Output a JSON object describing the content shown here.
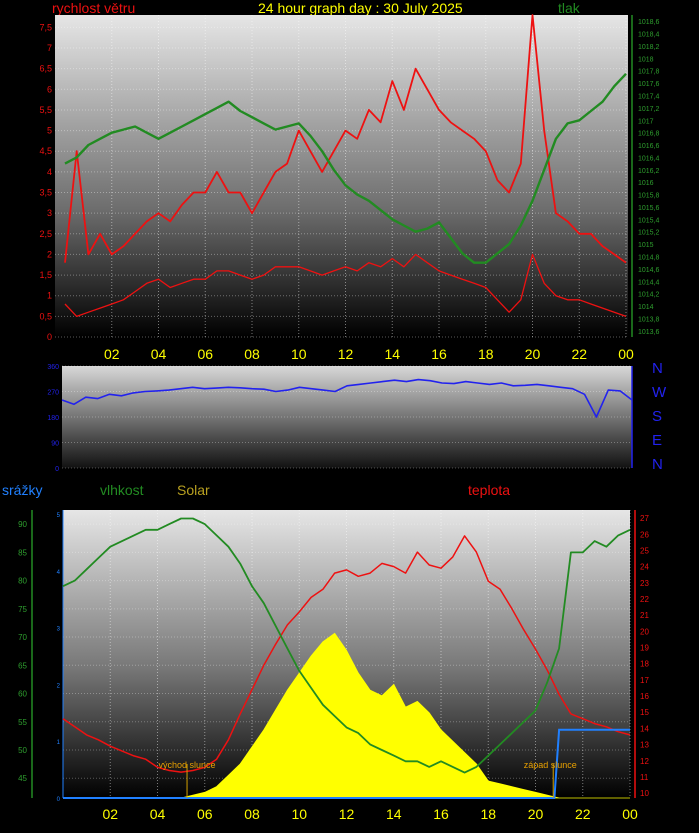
{
  "title": "24 hour graph day : 30 July 2025",
  "colors": {
    "wind": "#ee1111",
    "pressure": "#228b22",
    "direction": "#2222ee",
    "temperature": "#ee1111",
    "humidity": "#228b22",
    "solar": "#ffff00",
    "rain": "#2080ff"
  },
  "chart_data": [
    {
      "id": "wind_pressure",
      "type": "line",
      "label_left": "rychlost větru",
      "label_right": "tlak",
      "x_ticks": [
        "02",
        "04",
        "06",
        "08",
        "10",
        "12",
        "14",
        "16",
        "18",
        "20",
        "22",
        "00"
      ],
      "y_left": {
        "min": 0,
        "max": 7.8,
        "ticks": [
          "0",
          "0,5",
          "1",
          "1,5",
          "2",
          "2,5",
          "3",
          "3,5",
          "4",
          "4,5",
          "5",
          "5,5",
          "6",
          "6,5",
          "7",
          "7,5"
        ]
      },
      "y_right": {
        "min": 1013.5,
        "max": 1018.7,
        "ticks": [
          "1013,6",
          "1013,8",
          "1014",
          "1014,2",
          "1014,4",
          "1014,6",
          "1014,8",
          "1015",
          "1015,2",
          "1015,4",
          "1015,6",
          "1015,8",
          "1016",
          "1016,2",
          "1016,4",
          "1016,6",
          "1016,8",
          "1017",
          "1017,2",
          "1017,4",
          "1017,6",
          "1017,8",
          "1018",
          "1018,2",
          "1018,4",
          "1018,6"
        ]
      },
      "series": [
        {
          "key": "wind_max",
          "x": [
            0,
            0.5,
            1,
            1.5,
            2,
            2.5,
            3,
            3.5,
            4,
            4.5,
            5,
            5.5,
            6,
            6.5,
            7,
            7.5,
            8,
            8.5,
            9,
            9.5,
            10,
            10.5,
            11,
            11.5,
            12,
            12.5,
            13,
            13.5,
            14,
            14.5,
            15,
            15.5,
            16,
            16.5,
            17,
            17.5,
            18,
            18.5,
            19,
            19.5,
            20,
            20.5,
            21,
            21.5,
            22,
            22.5,
            23,
            23.5,
            24
          ],
          "y": [
            1.8,
            4.5,
            2,
            2.5,
            2,
            2.2,
            2.5,
            2.8,
            3,
            2.8,
            3.2,
            3.5,
            3.5,
            4,
            3.5,
            3.5,
            3,
            3.5,
            4,
            4.2,
            5,
            4.5,
            4,
            4.5,
            5,
            4.8,
            5.5,
            5.2,
            6.2,
            5.5,
            6.5,
            6,
            5.5,
            5.2,
            5,
            4.8,
            4.5,
            3.8,
            3.5,
            4.2,
            7.8,
            5,
            3,
            2.8,
            2.5,
            2.5,
            2.2,
            2,
            1.8
          ]
        },
        {
          "key": "wind_avg",
          "x": [
            0,
            0.5,
            1,
            1.5,
            2,
            2.5,
            3,
            3.5,
            4,
            4.5,
            5,
            5.5,
            6,
            6.5,
            7,
            7.5,
            8,
            8.5,
            9,
            9.5,
            10,
            10.5,
            11,
            11.5,
            12,
            12.5,
            13,
            13.5,
            14,
            14.5,
            15,
            15.5,
            16,
            16.5,
            17,
            17.5,
            18,
            18.5,
            19,
            19.5,
            20,
            20.5,
            21,
            21.5,
            22,
            22.5,
            23,
            23.5,
            24
          ],
          "y": [
            0.8,
            0.5,
            0.6,
            0.7,
            0.8,
            0.9,
            1.1,
            1.3,
            1.4,
            1.2,
            1.3,
            1.4,
            1.4,
            1.6,
            1.6,
            1.5,
            1.4,
            1.5,
            1.7,
            1.7,
            1.7,
            1.6,
            1.5,
            1.6,
            1.7,
            1.6,
            1.8,
            1.7,
            1.9,
            1.7,
            2,
            1.8,
            1.6,
            1.5,
            1.4,
            1.3,
            1.2,
            0.9,
            0.6,
            0.9,
            2,
            1.3,
            1,
            0.9,
            0.9,
            0.8,
            0.7,
            0.6,
            0.5
          ]
        },
        {
          "key": "pressure",
          "x": [
            0,
            0.5,
            1,
            1.5,
            2,
            2.5,
            3,
            3.5,
            4,
            4.5,
            5,
            5.5,
            6,
            6.5,
            7,
            7.5,
            8,
            8.5,
            9,
            9.5,
            10,
            10.5,
            11,
            11.5,
            12,
            12.5,
            13,
            13.5,
            14,
            14.5,
            15,
            15.5,
            16,
            16.5,
            17,
            17.5,
            18,
            18.5,
            19,
            19.5,
            20,
            20.5,
            21,
            21.5,
            22,
            22.5,
            23,
            23.5,
            24
          ],
          "y": [
            1016.3,
            1016.4,
            1016.6,
            1016.7,
            1016.8,
            1016.85,
            1016.9,
            1016.8,
            1016.7,
            1016.8,
            1016.9,
            1017.0,
            1017.1,
            1017.2,
            1017.3,
            1017.15,
            1017.05,
            1016.95,
            1016.85,
            1016.9,
            1016.95,
            1016.75,
            1016.5,
            1016.2,
            1015.95,
            1015.8,
            1015.7,
            1015.55,
            1015.4,
            1015.3,
            1015.2,
            1015.25,
            1015.35,
            1015.1,
            1014.85,
            1014.7,
            1014.7,
            1014.85,
            1015.0,
            1015.3,
            1015.7,
            1016.2,
            1016.7,
            1016.95,
            1017.0,
            1017.15,
            1017.3,
            1017.55,
            1017.75
          ]
        }
      ]
    },
    {
      "id": "direction",
      "type": "line",
      "compass": [
        "N",
        "W",
        "S",
        "E",
        "N"
      ],
      "y": {
        "min": 0,
        "max": 360,
        "ticks": [
          "0",
          "90",
          "180",
          "270",
          "360"
        ]
      },
      "series": [
        {
          "key": "direction",
          "x": [
            0,
            0.5,
            1,
            1.5,
            2,
            2.5,
            3,
            3.5,
            4,
            4.5,
            5,
            5.5,
            6,
            6.5,
            7,
            7.5,
            8,
            8.5,
            9,
            9.5,
            10,
            10.5,
            11,
            11.5,
            12,
            12.5,
            13,
            13.5,
            14,
            14.5,
            15,
            15.5,
            16,
            16.5,
            17,
            17.5,
            18,
            18.5,
            19,
            19.5,
            20,
            20.5,
            21,
            21.5,
            22,
            22.5,
            23,
            23.5,
            24
          ],
          "y": [
            240,
            225,
            250,
            245,
            260,
            255,
            265,
            270,
            272,
            275,
            280,
            285,
            280,
            282,
            285,
            283,
            280,
            278,
            270,
            275,
            285,
            280,
            275,
            270,
            290,
            295,
            300,
            305,
            310,
            305,
            312,
            308,
            300,
            298,
            305,
            300,
            295,
            300,
            290,
            292,
            295,
            290,
            285,
            280,
            260,
            180,
            275,
            272,
            240
          ]
        }
      ]
    },
    {
      "id": "temp_hum_solar",
      "type": "line",
      "label_rain": "srážky",
      "label_humidity": "vlhkost",
      "label_solar": "Solar",
      "label_temperature": "teplota",
      "sunrise_label": "východ slunce",
      "sunset_label": "západ slunce",
      "sunrise_time": 5.25,
      "sunset_time": 20.75,
      "x_ticks": [
        "02",
        "04",
        "06",
        "08",
        "10",
        "12",
        "14",
        "16",
        "18",
        "20",
        "22",
        "00"
      ],
      "y_humidity": {
        "min": 41.5,
        "max": 92.5,
        "ticks": [
          "45",
          "50",
          "55",
          "60",
          "65",
          "70",
          "75",
          "80",
          "85",
          "90"
        ]
      },
      "y_temperature": {
        "min": 9.7,
        "max": 27.5,
        "ticks": [
          "10",
          "11",
          "12",
          "13",
          "14",
          "15",
          "16",
          "17",
          "18",
          "19",
          "20",
          "21",
          "22",
          "23",
          "24",
          "25",
          "26",
          "27"
        ]
      },
      "y_rain": {
        "min": 0,
        "max": 5,
        "ticks": [
          "0",
          "1",
          "2",
          "3",
          "4",
          "5"
        ]
      },
      "series": [
        {
          "key": "temperature",
          "x": [
            0,
            0.5,
            1,
            1.5,
            2,
            2.5,
            3,
            3.5,
            4,
            4.5,
            5,
            5.5,
            6,
            6.5,
            7,
            7.5,
            8,
            8.5,
            9,
            9.5,
            10,
            10.5,
            11,
            11.5,
            12,
            12.5,
            13,
            13.5,
            14,
            14.5,
            15,
            15.5,
            16,
            16.5,
            17,
            17.5,
            18,
            18.5,
            19,
            19.5,
            20,
            20.5,
            21,
            21.5,
            22,
            22.5,
            23,
            23.5,
            24
          ],
          "y": [
            14.6,
            14.1,
            13.6,
            13.3,
            12.9,
            12.6,
            12.3,
            12.1,
            11.6,
            11.4,
            11.3,
            11.4,
            11.6,
            12.1,
            13.3,
            14.9,
            16.4,
            17.9,
            19.2,
            20.4,
            21.2,
            22.1,
            22.6,
            23.6,
            23.8,
            23.4,
            23.6,
            24.2,
            24.0,
            23.6,
            24.9,
            24.1,
            23.9,
            24.6,
            25.9,
            24.9,
            23.1,
            22.6,
            21.4,
            20.1,
            18.9,
            17.6,
            16.1,
            14.9,
            14.6,
            14.3,
            14.1,
            13.8,
            13.6
          ]
        },
        {
          "key": "humidity",
          "x": [
            0,
            0.5,
            1,
            1.5,
            2,
            2.5,
            3,
            3.5,
            4,
            4.5,
            5,
            5.5,
            6,
            6.5,
            7,
            7.5,
            8,
            8.5,
            9,
            9.5,
            10,
            10.5,
            11,
            11.5,
            12,
            12.5,
            13,
            13.5,
            14,
            14.5,
            15,
            15.5,
            16,
            16.5,
            17,
            17.5,
            18,
            18.5,
            19,
            19.5,
            20,
            20.5,
            21,
            21.5,
            22,
            22.5,
            23,
            23.5,
            24
          ],
          "y": [
            79,
            80,
            82,
            84,
            86,
            87,
            88,
            89,
            89,
            90,
            91,
            91,
            90,
            88,
            86,
            83,
            79,
            76,
            72,
            68,
            64,
            61,
            58,
            56,
            54,
            53,
            51,
            50,
            49,
            48,
            48,
            47,
            48,
            47,
            46,
            47,
            49,
            51,
            53,
            55,
            57,
            62,
            68,
            85,
            85,
            87,
            86,
            88,
            89
          ]
        },
        {
          "key": "solar",
          "x": [
            0,
            5,
            5.5,
            6,
            6.5,
            7,
            7.5,
            8,
            8.5,
            9,
            9.5,
            10,
            10.5,
            11,
            11.5,
            12,
            12.5,
            13,
            13.5,
            14,
            14.5,
            15,
            15.5,
            16,
            16.5,
            17,
            17.5,
            18,
            18.5,
            19,
            19.5,
            20,
            20.5,
            21,
            24
          ],
          "y": [
            0,
            0,
            0.05,
            0.1,
            0.2,
            0.4,
            0.6,
            0.9,
            1.2,
            1.55,
            1.9,
            2.2,
            2.5,
            2.75,
            2.9,
            2.6,
            2.2,
            1.9,
            1.8,
            2.0,
            1.6,
            1.7,
            1.5,
            1.2,
            1.0,
            0.8,
            0.6,
            0.3,
            0.25,
            0.2,
            0.15,
            0.1,
            0.05,
            0,
            0
          ]
        },
        {
          "key": "rain",
          "x": [
            0,
            20.8,
            21,
            24
          ],
          "y": [
            0,
            0,
            1.2,
            1.2
          ]
        }
      ]
    }
  ]
}
